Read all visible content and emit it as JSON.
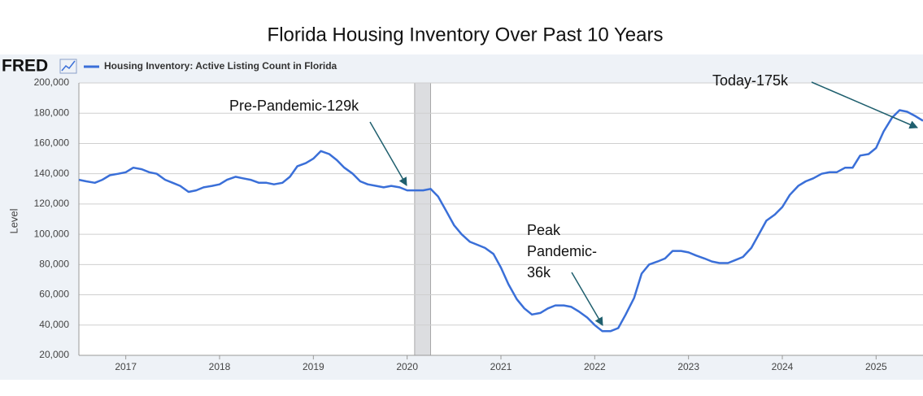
{
  "chart_data": {
    "type": "line",
    "title": "Florida Housing Inventory Over Past 10 Years",
    "logo": "FRED",
    "y_label": "Level",
    "x": [
      2016.5,
      2016.58,
      2016.67,
      2016.75,
      2016.83,
      2016.92,
      2017,
      2017.08,
      2017.17,
      2017.25,
      2017.33,
      2017.42,
      2017.5,
      2017.58,
      2017.67,
      2017.75,
      2017.83,
      2017.92,
      2018,
      2018.08,
      2018.17,
      2018.25,
      2018.33,
      2018.42,
      2018.5,
      2018.58,
      2018.67,
      2018.75,
      2018.83,
      2018.92,
      2019,
      2019.08,
      2019.17,
      2019.25,
      2019.33,
      2019.42,
      2019.5,
      2019.58,
      2019.67,
      2019.75,
      2019.83,
      2019.92,
      2020,
      2020.08,
      2020.17,
      2020.25,
      2020.33,
      2020.42,
      2020.5,
      2020.58,
      2020.67,
      2020.75,
      2020.83,
      2020.92,
      2021,
      2021.08,
      2021.17,
      2021.25,
      2021.33,
      2021.42,
      2021.5,
      2021.58,
      2021.67,
      2021.75,
      2021.83,
      2021.92,
      2022,
      2022.08,
      2022.17,
      2022.25,
      2022.33,
      2022.42,
      2022.5,
      2022.58,
      2022.67,
      2022.75,
      2022.83,
      2022.92,
      2023,
      2023.08,
      2023.17,
      2023.25,
      2023.33,
      2023.42,
      2023.5,
      2023.58,
      2023.67,
      2023.75,
      2023.83,
      2023.92,
      2024,
      2024.08,
      2024.17,
      2024.25,
      2024.33,
      2024.42,
      2024.5,
      2024.58,
      2024.67,
      2024.75,
      2024.83,
      2024.92,
      2025,
      2025.08,
      2025.17,
      2025.25,
      2025.33,
      2025.42,
      2025.5
    ],
    "series": [
      {
        "name": "Housing Inventory: Active Listing Count in Florida",
        "color": "#3a6fd8",
        "values": [
          136000,
          135000,
          134000,
          136000,
          139000,
          140000,
          141000,
          144000,
          143000,
          141000,
          140000,
          136000,
          134000,
          132000,
          128000,
          129000,
          131000,
          132000,
          133000,
          136000,
          138000,
          137000,
          136000,
          134000,
          134000,
          133000,
          134000,
          138000,
          145000,
          147000,
          150000,
          155000,
          153000,
          149000,
          144000,
          140000,
          135000,
          133000,
          132000,
          131000,
          132000,
          131000,
          129000,
          129000,
          129000,
          130000,
          125000,
          115000,
          106000,
          100000,
          95000,
          93000,
          91000,
          87000,
          78000,
          67000,
          57000,
          51000,
          47000,
          48000,
          51000,
          53000,
          53000,
          52000,
          49000,
          45000,
          40000,
          36000,
          36000,
          38000,
          47000,
          58000,
          74000,
          80000,
          82000,
          84000,
          89000,
          89000,
          88000,
          86000,
          84000,
          82000,
          81000,
          81000,
          83000,
          85000,
          91000,
          100000,
          109000,
          113000,
          118000,
          126000,
          132000,
          135000,
          137000,
          140000,
          141000,
          141000,
          144000,
          144000,
          152000,
          153000,
          157000,
          168000,
          177000,
          182000,
          181000,
          178000,
          175000
        ]
      }
    ],
    "xlim": [
      2016.5,
      2025.5
    ],
    "xticks": [
      2017,
      2018,
      2019,
      2020,
      2021,
      2022,
      2023,
      2024,
      2025
    ],
    "ylim": [
      20000,
      200000
    ],
    "yticks": [
      {
        "value": 20000,
        "label": "20,000"
      },
      {
        "value": 40000,
        "label": "40,000"
      },
      {
        "value": 60000,
        "label": "60,000"
      },
      {
        "value": 80000,
        "label": "80,000"
      },
      {
        "value": 100000,
        "label": "100,000"
      },
      {
        "value": 120000,
        "label": "120,000"
      },
      {
        "value": 140000,
        "label": "140,000"
      },
      {
        "value": 160000,
        "label": "160,000"
      },
      {
        "value": 180000,
        "label": "180,000"
      },
      {
        "value": 200000,
        "label": "200,000"
      }
    ],
    "grid": true,
    "shaded_regions": [
      [
        2020.08,
        2020.25
      ]
    ],
    "annotations": [
      {
        "lines": [
          "Pre-Pandemic-129k"
        ]
      },
      {
        "lines": [
          "Peak",
          "Pandemic-",
          "36k"
        ]
      },
      {
        "lines": [
          "Today-175k"
        ]
      }
    ]
  }
}
